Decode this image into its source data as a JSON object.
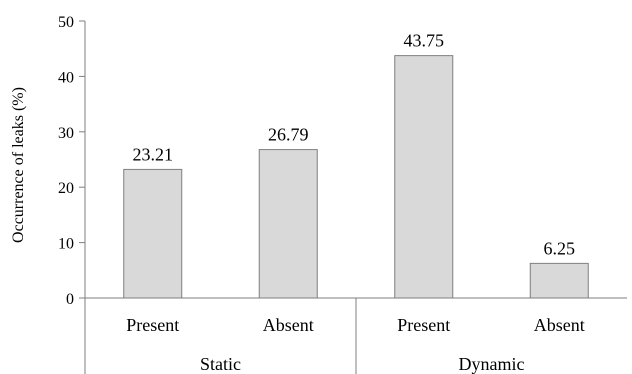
{
  "chart_data": {
    "type": "bar",
    "title": "",
    "xlabel": "",
    "ylabel": "Occurrence of leaks (%)",
    "ylim": [
      0,
      50
    ],
    "yticks": [
      0,
      10,
      20,
      30,
      40,
      50
    ],
    "grid": false,
    "legend": "none",
    "groups": [
      {
        "label": "Static",
        "categories": [
          "Present",
          "Absent"
        ]
      },
      {
        "label": "Dynamic",
        "categories": [
          "Present",
          "Absent"
        ]
      }
    ],
    "categories": [
      "Present",
      "Absent",
      "Present",
      "Absent"
    ],
    "values": [
      23.21,
      26.79,
      43.75,
      6.25
    ],
    "data_labels": [
      "23.21",
      "26.79",
      "43.75",
      "6.25"
    ],
    "colors": {
      "bar_fill": "#d9d9d9",
      "bar_stroke": "#7f7f7f",
      "axis": "#7f7f7f",
      "text": "#000000"
    }
  }
}
